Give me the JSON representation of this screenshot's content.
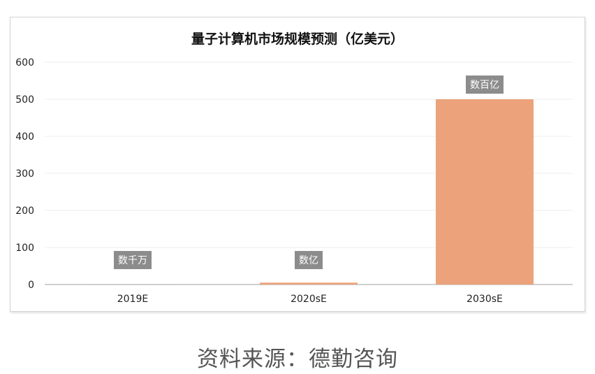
{
  "chart_data": {
    "type": "bar",
    "title": "量子计算机市场规模预测（亿美元）",
    "categories": [
      "2019E",
      "2020sE",
      "2030sE"
    ],
    "values": [
      0.1,
      5,
      500
    ],
    "data_labels": [
      "数千万",
      "数亿",
      "数百亿"
    ],
    "ylim": [
      0,
      600
    ],
    "yticks": [
      0,
      100,
      200,
      300,
      400,
      500,
      600
    ],
    "xlabel": "",
    "ylabel": "",
    "grid": true,
    "legend": "none",
    "colors": {
      "bar": "#eca27a",
      "label_bg": "#8c8c8c",
      "label_text": "#ffffff",
      "grid": "#ececec",
      "axis": "#bfbfbf"
    }
  },
  "source_text": "资料来源：德勤咨询"
}
